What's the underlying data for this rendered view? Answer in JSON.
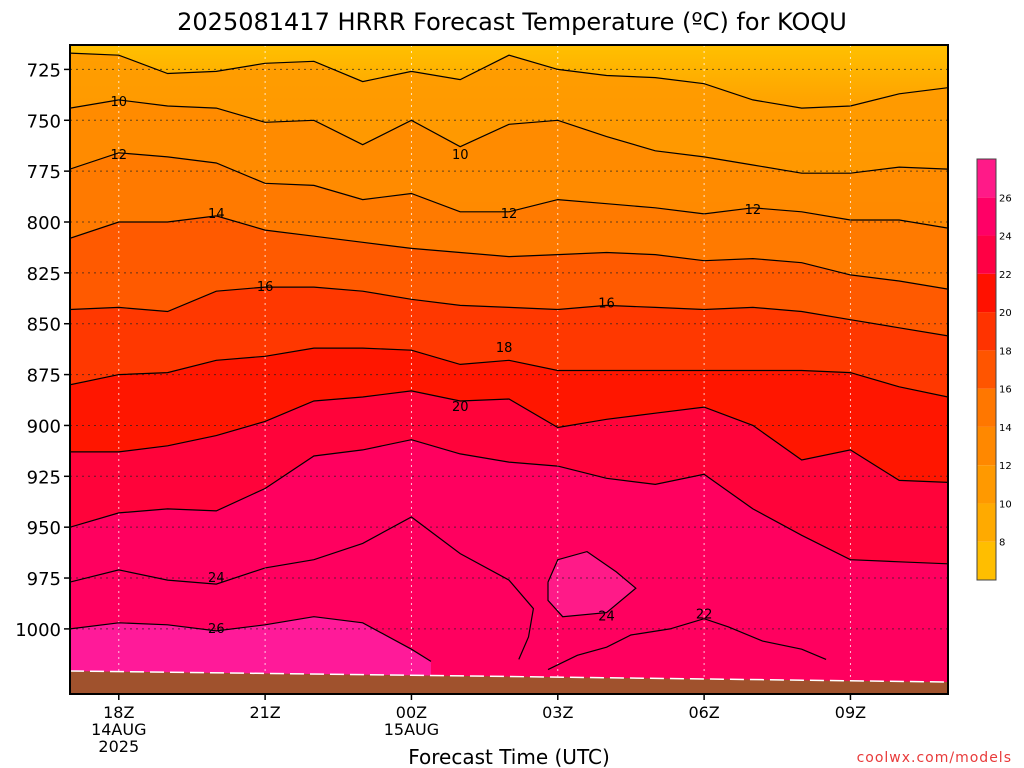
{
  "chart_data": {
    "type": "heatmap",
    "title": "2025081417 HRRR Forecast Temperature (ºC) for KOQU",
    "xlabel": "Forecast Time (UTC)",
    "ylabel": "",
    "watermark": "coolwx.com/models",
    "x_ticks": [
      {
        "hour": 18,
        "lines": [
          "18Z",
          "14AUG",
          "2025"
        ]
      },
      {
        "hour": 21,
        "lines": [
          "21Z"
        ]
      },
      {
        "hour": 24,
        "lines": [
          "00Z",
          "15AUG"
        ]
      },
      {
        "hour": 27,
        "lines": [
          "03Z"
        ]
      },
      {
        "hour": 30,
        "lines": [
          "06Z"
        ]
      },
      {
        "hour": 33,
        "lines": [
          "09Z"
        ]
      }
    ],
    "xlim": [
      17,
      35
    ],
    "y_ticks": [
      725,
      750,
      775,
      800,
      825,
      850,
      875,
      900,
      925,
      950,
      975,
      1000
    ],
    "ylim_pressure_hPa": [
      713,
      1032
    ],
    "y_scale": "linear-inverted",
    "grid": true,
    "levels_degC": [
      8,
      10,
      12,
      14,
      16,
      18,
      20,
      22,
      24,
      26
    ],
    "colorbar_ticks": [
      8,
      10,
      12,
      14,
      16,
      18,
      20,
      22,
      24,
      26
    ],
    "colorbar_range": [
      6,
      28
    ],
    "palette": [
      "#ffbe00",
      "#ffaa00",
      "#ff9900",
      "#ff8800",
      "#ff7700",
      "#ff5500",
      "#ff3300",
      "#ff1100",
      "#ff0044",
      "#ff0066",
      "#ff1a88"
    ],
    "ground_color": "#a0522d",
    "contours": [
      {
        "value": 10,
        "points": [
          [
            17,
            717
          ],
          [
            18,
            718
          ],
          [
            19,
            727
          ],
          [
            20,
            726
          ],
          [
            21,
            722
          ],
          [
            22,
            721
          ],
          [
            23,
            731
          ],
          [
            24,
            726
          ],
          [
            25,
            730
          ],
          [
            26,
            718
          ],
          [
            27,
            725
          ],
          [
            28,
            728
          ],
          [
            29,
            729
          ],
          [
            30,
            732
          ],
          [
            31,
            740
          ],
          [
            32,
            744
          ],
          [
            33,
            743
          ],
          [
            34,
            737
          ],
          [
            35,
            734
          ]
        ]
      },
      {
        "value": 12,
        "points": [
          [
            17,
            744
          ],
          [
            18,
            740
          ],
          [
            19,
            743
          ],
          [
            20,
            744
          ],
          [
            21,
            751
          ],
          [
            22,
            750
          ],
          [
            23,
            762
          ],
          [
            24,
            750
          ],
          [
            25,
            763
          ],
          [
            26,
            752
          ],
          [
            27,
            750
          ],
          [
            28,
            758
          ],
          [
            29,
            765
          ],
          [
            30,
            768
          ],
          [
            31,
            772
          ],
          [
            32,
            776
          ],
          [
            33,
            776
          ],
          [
            34,
            773
          ],
          [
            35,
            774
          ]
        ]
      },
      {
        "value": 14,
        "points": [
          [
            17,
            774
          ],
          [
            18,
            766
          ],
          [
            19,
            768
          ],
          [
            20,
            771
          ],
          [
            21,
            781
          ],
          [
            22,
            782
          ],
          [
            23,
            789
          ],
          [
            24,
            786
          ],
          [
            25,
            795
          ],
          [
            26,
            795
          ],
          [
            27,
            789
          ],
          [
            28,
            791
          ],
          [
            29,
            793
          ],
          [
            30,
            796
          ],
          [
            31,
            793
          ],
          [
            32,
            795
          ],
          [
            33,
            799
          ],
          [
            34,
            799
          ],
          [
            35,
            803
          ]
        ]
      },
      {
        "value": 16,
        "points": [
          [
            17,
            808
          ],
          [
            18,
            800
          ],
          [
            19,
            800
          ],
          [
            20,
            797
          ],
          [
            21,
            804
          ],
          [
            22,
            807
          ],
          [
            23,
            810
          ],
          [
            24,
            813
          ],
          [
            25,
            815
          ],
          [
            26,
            817
          ],
          [
            27,
            816
          ],
          [
            28,
            815
          ],
          [
            29,
            816
          ],
          [
            30,
            819
          ],
          [
            31,
            818
          ],
          [
            32,
            820
          ],
          [
            33,
            826
          ],
          [
            34,
            829
          ],
          [
            35,
            833
          ]
        ]
      },
      {
        "value": 18,
        "points": [
          [
            17,
            843
          ],
          [
            18,
            842
          ],
          [
            19,
            844
          ],
          [
            20,
            834
          ],
          [
            21,
            832
          ],
          [
            22,
            832
          ],
          [
            23,
            834
          ],
          [
            24,
            838
          ],
          [
            25,
            841
          ],
          [
            26,
            842
          ],
          [
            27,
            843
          ],
          [
            28,
            841
          ],
          [
            29,
            842
          ],
          [
            30,
            843
          ],
          [
            31,
            842
          ],
          [
            32,
            844
          ],
          [
            33,
            848
          ],
          [
            34,
            852
          ],
          [
            35,
            856
          ]
        ]
      },
      {
        "value": 20,
        "points": [
          [
            17,
            880
          ],
          [
            18,
            875
          ],
          [
            19,
            874
          ],
          [
            20,
            868
          ],
          [
            21,
            866
          ],
          [
            22,
            862
          ],
          [
            23,
            862
          ],
          [
            24,
            863
          ],
          [
            25,
            870
          ],
          [
            26,
            868
          ],
          [
            27,
            873
          ],
          [
            28,
            873
          ],
          [
            29,
            873
          ],
          [
            30,
            873
          ],
          [
            31,
            873
          ],
          [
            32,
            873
          ],
          [
            33,
            874
          ],
          [
            34,
            881
          ],
          [
            35,
            886
          ]
        ]
      },
      {
        "value": 22,
        "points": [
          [
            17,
            913
          ],
          [
            18,
            913
          ],
          [
            19,
            910
          ],
          [
            20,
            905
          ],
          [
            21,
            898
          ],
          [
            22,
            888
          ],
          [
            23,
            886
          ],
          [
            24,
            883
          ],
          [
            25,
            888
          ],
          [
            26,
            887
          ],
          [
            27,
            901
          ],
          [
            28,
            897
          ],
          [
            29,
            894
          ],
          [
            30,
            891
          ],
          [
            31,
            900
          ],
          [
            32,
            917
          ],
          [
            33,
            912
          ],
          [
            34,
            927
          ],
          [
            35,
            928
          ]
        ]
      },
      {
        "value": 24,
        "points": [
          [
            17,
            950
          ],
          [
            18,
            943
          ],
          [
            19,
            941
          ],
          [
            20,
            942
          ],
          [
            21,
            931
          ],
          [
            22,
            915
          ],
          [
            23,
            912
          ],
          [
            24,
            907
          ],
          [
            25,
            914
          ],
          [
            26,
            918
          ],
          [
            27,
            920
          ],
          [
            28,
            926
          ],
          [
            29,
            929
          ],
          [
            30,
            924
          ],
          [
            31,
            941
          ],
          [
            32,
            954
          ],
          [
            33,
            966
          ],
          [
            34,
            967
          ],
          [
            35,
            968
          ]
        ]
      },
      {
        "value": 26,
        "points": [
          [
            17,
            977
          ],
          [
            18,
            971
          ],
          [
            19,
            976
          ],
          [
            20,
            978
          ],
          [
            21,
            970
          ],
          [
            22,
            966
          ],
          [
            23,
            958
          ],
          [
            24,
            945
          ],
          [
            25,
            963
          ],
          [
            26,
            976
          ],
          [
            26.5,
            990
          ],
          [
            26.4,
            1004
          ],
          [
            26.2,
            1015
          ]
        ]
      },
      {
        "value": 24,
        "points": [
          [
            26.8,
            1020
          ],
          [
            27.4,
            1013
          ],
          [
            28,
            1009
          ],
          [
            28.5,
            1003
          ],
          [
            29.3,
            1000
          ],
          [
            30,
            995
          ],
          [
            30.5,
            999
          ],
          [
            31.2,
            1006
          ],
          [
            32,
            1010
          ],
          [
            32.5,
            1015
          ]
        ]
      },
      {
        "value": 26,
        "points": [
          [
            26.8,
            977
          ],
          [
            27,
            966
          ],
          [
            27.6,
            962
          ],
          [
            28.2,
            972
          ],
          [
            28.6,
            980
          ],
          [
            28,
            992
          ],
          [
            27.1,
            994
          ],
          [
            26.8,
            986
          ],
          [
            26.8,
            977
          ]
        ]
      },
      {
        "value": 26,
        "points": [
          [
            17,
            1000
          ],
          [
            18,
            997
          ],
          [
            19,
            998
          ],
          [
            20,
            1001
          ],
          [
            21,
            998
          ],
          [
            22,
            994
          ],
          [
            23,
            997
          ],
          [
            24,
            1010
          ],
          [
            24.4,
            1016
          ]
        ]
      }
    ],
    "contour_labels": [
      {
        "value": 10,
        "hour": 18.0,
        "pressure": 741
      },
      {
        "value": 10,
        "hour": 25.0,
        "pressure": 767
      },
      {
        "value": 12,
        "hour": 18.0,
        "pressure": 767
      },
      {
        "value": 12,
        "hour": 26.0,
        "pressure": 796
      },
      {
        "value": 12,
        "hour": 31.0,
        "pressure": 794
      },
      {
        "value": 14,
        "hour": 20.0,
        "pressure": 796
      },
      {
        "value": 16,
        "hour": 21.0,
        "pressure": 832
      },
      {
        "value": 16,
        "hour": 28.0,
        "pressure": 840
      },
      {
        "value": 18,
        "hour": 25.9,
        "pressure": 862
      },
      {
        "value": 20,
        "hour": 25.0,
        "pressure": 891
      },
      {
        "value": 22,
        "hour": 30.0,
        "pressure": 993
      },
      {
        "value": 24,
        "hour": 20.0,
        "pressure": 975
      },
      {
        "value": 24,
        "hour": 28.0,
        "pressure": 994
      },
      {
        "value": 26,
        "hour": 20.0,
        "pressure": 1000
      }
    ]
  }
}
